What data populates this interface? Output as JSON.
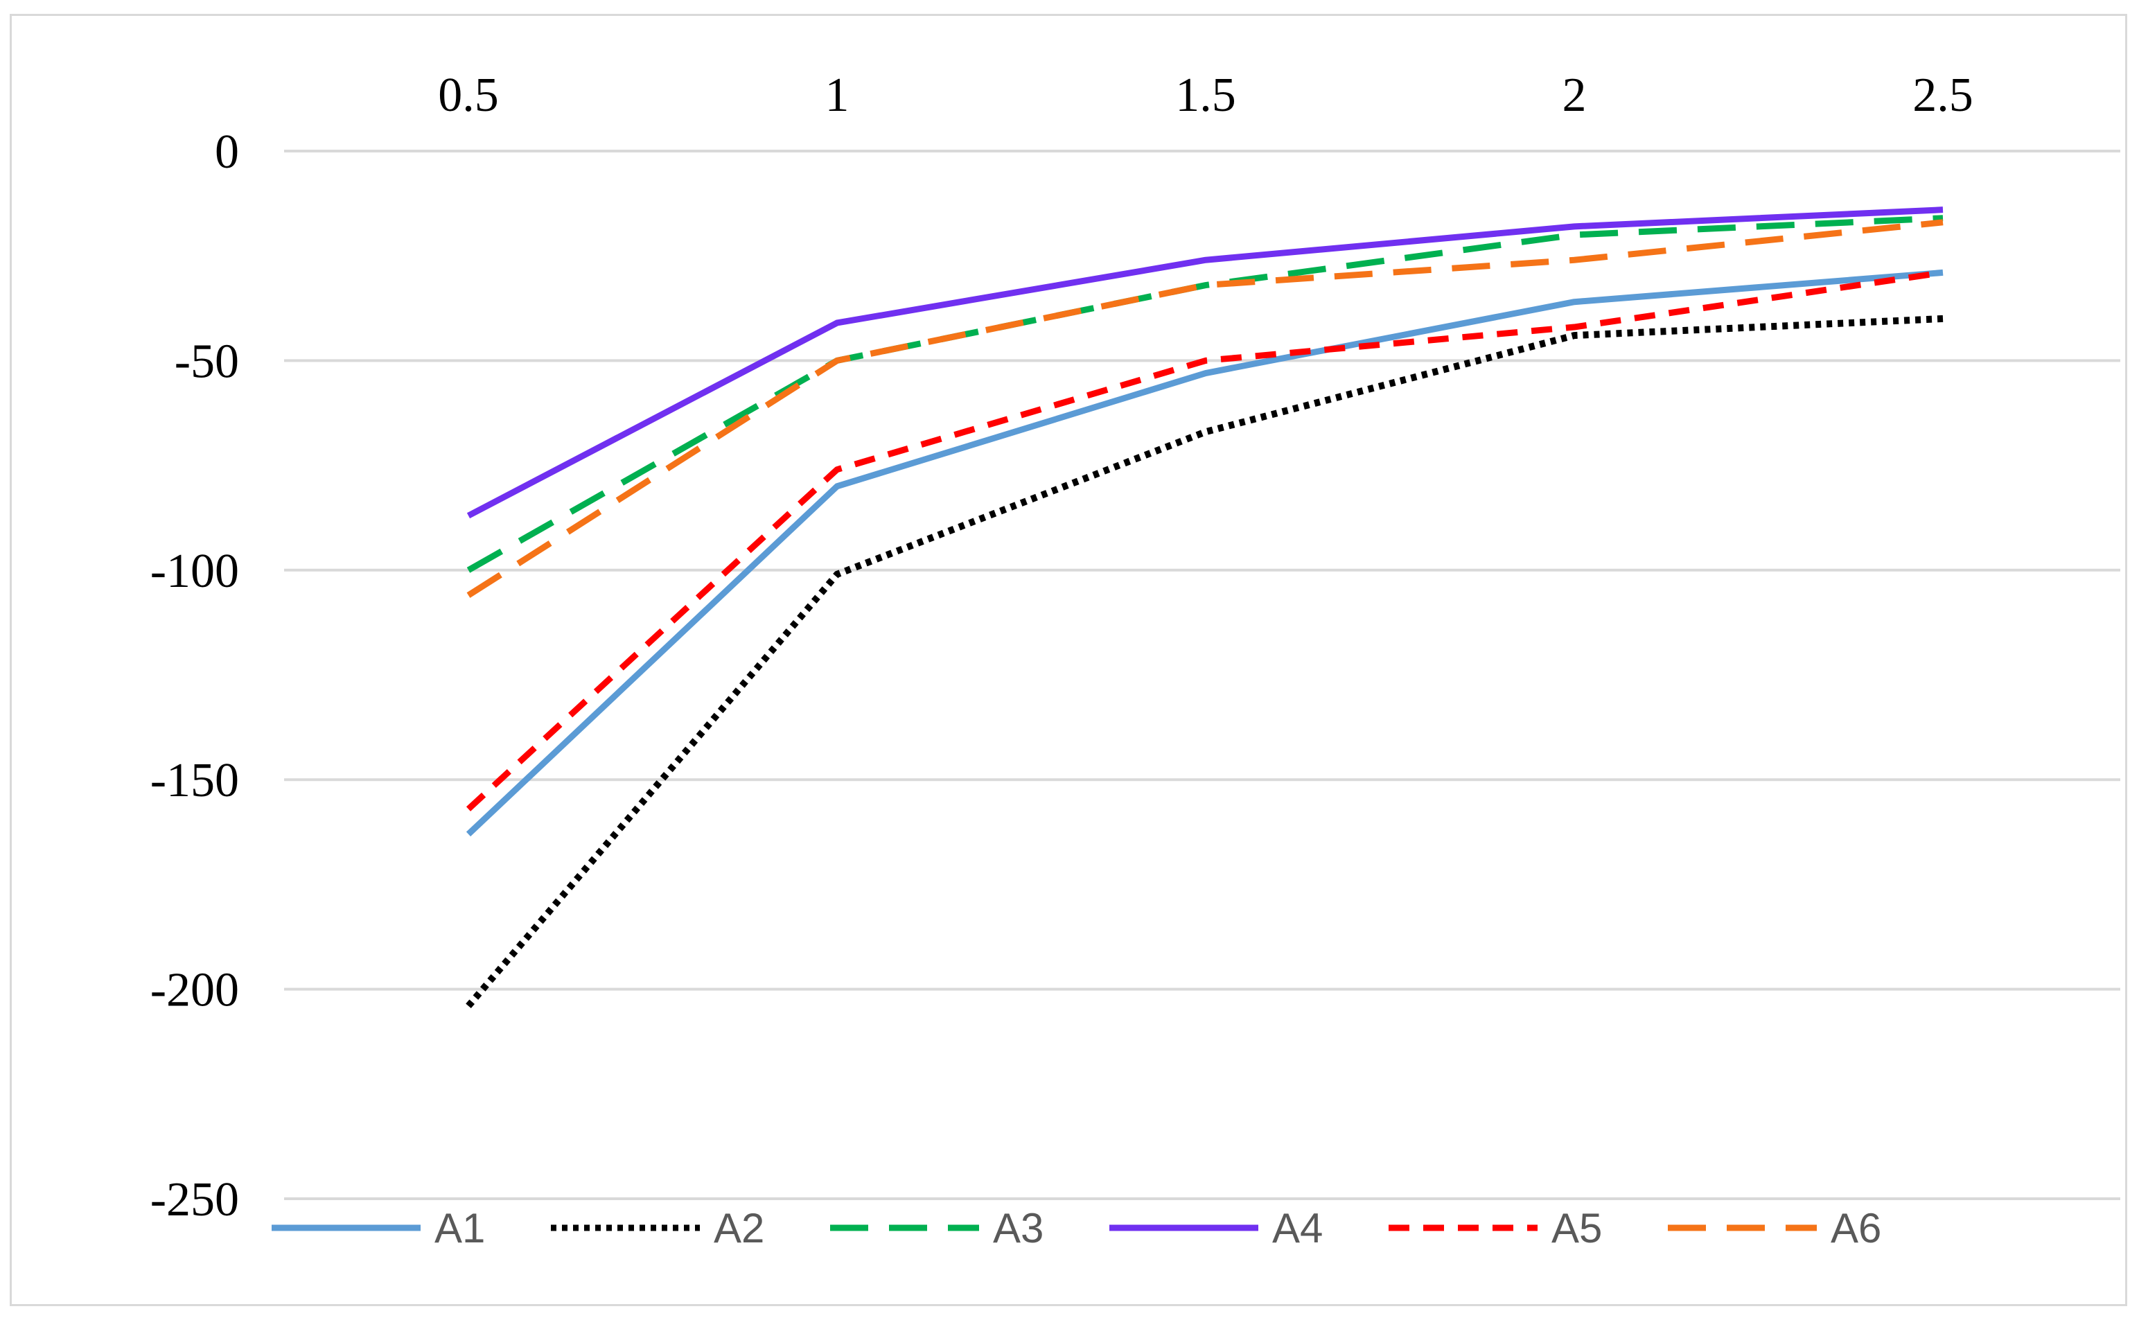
{
  "chart_data": {
    "type": "line",
    "title": "",
    "xlabel": "",
    "ylabel": "",
    "x": [
      0.5,
      1,
      1.5,
      2,
      2.5
    ],
    "x_tick_labels": [
      "0.5",
      "1",
      "1.5",
      "2",
      "2.5"
    ],
    "x_axis_position": "top",
    "ylim": [
      -250,
      0
    ],
    "y_ticks": [
      0,
      -50,
      -100,
      -150,
      -200,
      -250
    ],
    "y_tick_labels": [
      "0",
      "-50",
      "-100",
      "-150",
      "-200",
      "-250"
    ],
    "grid": true,
    "legend_position": "bottom",
    "series": [
      {
        "name": "A1",
        "color": "#5b9bd5",
        "dash": "solid",
        "values": [
          -163,
          -80,
          -53,
          -36,
          -29
        ]
      },
      {
        "name": "A2",
        "color": "#000000",
        "dash": "dotted",
        "values": [
          -204,
          -101,
          -67,
          -44,
          -40
        ]
      },
      {
        "name": "A3",
        "color": "#00b050",
        "dash": "long-dash",
        "values": [
          -100,
          -50,
          -32,
          -20,
          -16
        ]
      },
      {
        "name": "A4",
        "color": "#7030f0",
        "dash": "solid",
        "values": [
          -87,
          -41,
          -26,
          -18,
          -14
        ]
      },
      {
        "name": "A5",
        "color": "#ff0000",
        "dash": "dash",
        "values": [
          -157,
          -76,
          -50,
          -42,
          -29
        ]
      },
      {
        "name": "A6",
        "color": "#f57317",
        "dash": "long-dash",
        "values": [
          -106,
          -50,
          -32,
          -26,
          -17
        ]
      }
    ]
  }
}
